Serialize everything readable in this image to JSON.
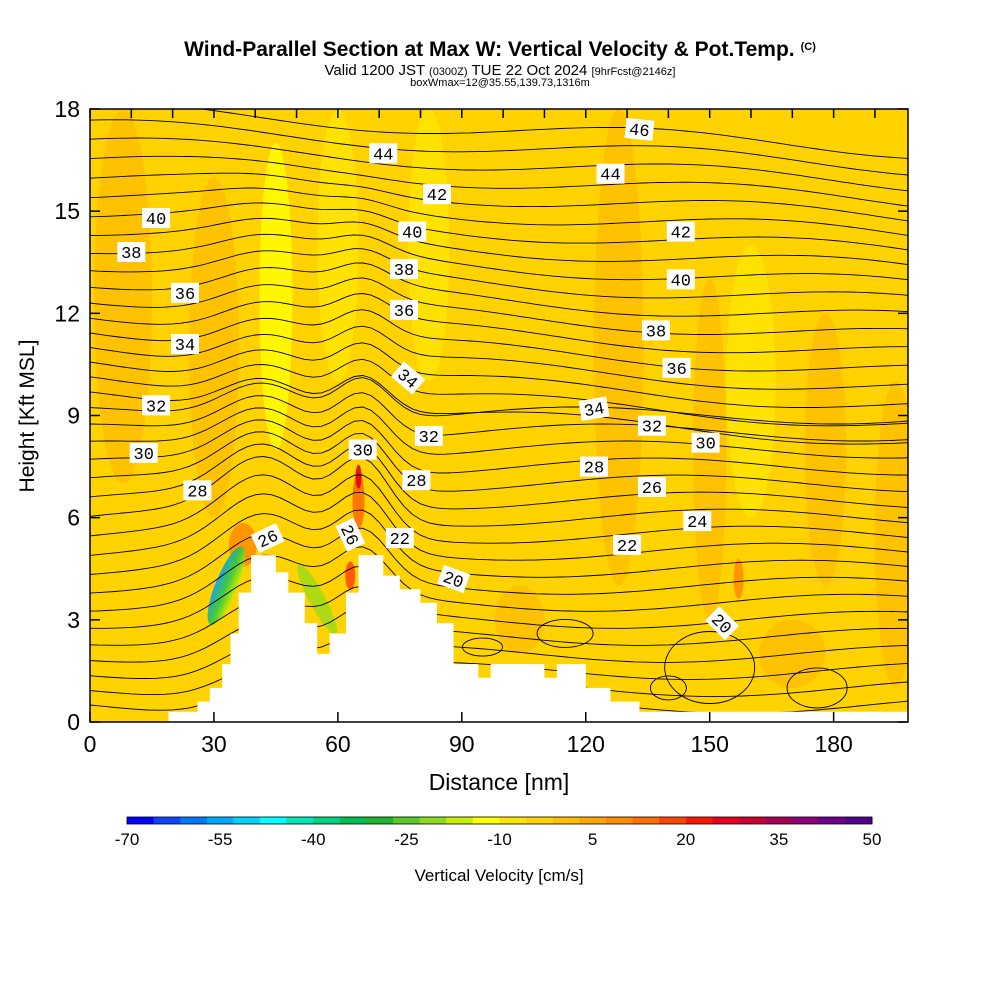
{
  "header": {
    "title": "Wind-Parallel Section at Max W: Vertical Velocity & Pot.Temp.",
    "copyright": "(C)",
    "valid_prefix": "Valid 1200 JST",
    "valid_utc": "(0300Z)",
    "valid_date": "TUE 22 Oct 2024",
    "forecast": "[9hrFcst@2146z]",
    "box_info": "boxWmax=12@35.55,139.73,1316m"
  },
  "chart_data": {
    "type": "contour",
    "xlabel": "Distance [nm]",
    "ylabel": "Height [Kft MSL]",
    "xlim": [
      0,
      198
    ],
    "ylim": [
      0,
      18
    ],
    "xticks": [
      0,
      30,
      60,
      90,
      120,
      150,
      180
    ],
    "yticks": [
      0,
      3,
      6,
      9,
      12,
      15,
      18
    ],
    "terrain_kft": [
      [
        0,
        0
      ],
      [
        19,
        0
      ],
      [
        19,
        0.3
      ],
      [
        26,
        0.3
      ],
      [
        26,
        0.6
      ],
      [
        29,
        0.6
      ],
      [
        29,
        1.0
      ],
      [
        32,
        1.0
      ],
      [
        32,
        1.7
      ],
      [
        34,
        1.7
      ],
      [
        34,
        2.6
      ],
      [
        36,
        2.6
      ],
      [
        36,
        3.8
      ],
      [
        39,
        3.8
      ],
      [
        39,
        4.9
      ],
      [
        45,
        4.9
      ],
      [
        45,
        4.4
      ],
      [
        48,
        4.4
      ],
      [
        48,
        3.8
      ],
      [
        52,
        3.8
      ],
      [
        52,
        2.9
      ],
      [
        55,
        2.9
      ],
      [
        55,
        2.0
      ],
      [
        58,
        2.0
      ],
      [
        58,
        2.6
      ],
      [
        62,
        2.6
      ],
      [
        62,
        3.8
      ],
      [
        65,
        3.8
      ],
      [
        65,
        4.9
      ],
      [
        71,
        4.9
      ],
      [
        71,
        4.3
      ],
      [
        75,
        4.3
      ],
      [
        75,
        3.9
      ],
      [
        80,
        3.9
      ],
      [
        80,
        3.5
      ],
      [
        84,
        3.5
      ],
      [
        84,
        2.9
      ],
      [
        88,
        2.9
      ],
      [
        88,
        1.7
      ],
      [
        94,
        1.7
      ],
      [
        94,
        1.3
      ],
      [
        97,
        1.3
      ],
      [
        97,
        1.7
      ],
      [
        110,
        1.7
      ],
      [
        110,
        1.3
      ],
      [
        113,
        1.3
      ],
      [
        113,
        1.7
      ],
      [
        120,
        1.7
      ],
      [
        120,
        1.0
      ],
      [
        126,
        1.0
      ],
      [
        126,
        0.6
      ],
      [
        133,
        0.6
      ],
      [
        133,
        0.3
      ],
      [
        198,
        0.3
      ],
      [
        198,
        0
      ]
    ],
    "contour_labels": [
      {
        "text": "46",
        "x": 133,
        "y": 17.4,
        "angle": 6
      },
      {
        "text": "44",
        "x": 71,
        "y": 16.7,
        "angle": 0
      },
      {
        "text": "44",
        "x": 126,
        "y": 16.1,
        "angle": 0
      },
      {
        "text": "42",
        "x": 84,
        "y": 15.5,
        "angle": 0
      },
      {
        "text": "42",
        "x": 143,
        "y": 14.4,
        "angle": 0
      },
      {
        "text": "40",
        "x": 16,
        "y": 14.8,
        "angle": 0
      },
      {
        "text": "40",
        "x": 78,
        "y": 14.4,
        "angle": 0
      },
      {
        "text": "40",
        "x": 143,
        "y": 13.0,
        "angle": 0
      },
      {
        "text": "38",
        "x": 10,
        "y": 13.8,
        "angle": 0
      },
      {
        "text": "38",
        "x": 76,
        "y": 13.3,
        "angle": 0
      },
      {
        "text": "38",
        "x": 137,
        "y": 11.5,
        "angle": 0
      },
      {
        "text": "36",
        "x": 23,
        "y": 12.6,
        "angle": 0
      },
      {
        "text": "36",
        "x": 76,
        "y": 12.1,
        "angle": 0
      },
      {
        "text": "36",
        "x": 142,
        "y": 10.4,
        "angle": 0
      },
      {
        "text": "34",
        "x": 23,
        "y": 11.1,
        "angle": 0
      },
      {
        "text": "34",
        "x": 77,
        "y": 10.1,
        "angle": 40
      },
      {
        "text": "34",
        "x": 122,
        "y": 9.2,
        "angle": -10
      },
      {
        "text": "32",
        "x": 16,
        "y": 9.3,
        "angle": 0
      },
      {
        "text": "32",
        "x": 82,
        "y": 8.4,
        "angle": 0
      },
      {
        "text": "32",
        "x": 136,
        "y": 8.7,
        "angle": 0
      },
      {
        "text": "30",
        "x": 13,
        "y": 7.9,
        "angle": 0
      },
      {
        "text": "30",
        "x": 66,
        "y": 8.0,
        "angle": 0
      },
      {
        "text": "30",
        "x": 149,
        "y": 8.2,
        "angle": 0
      },
      {
        "text": "28",
        "x": 26,
        "y": 6.8,
        "angle": 0
      },
      {
        "text": "28",
        "x": 79,
        "y": 7.1,
        "angle": 0
      },
      {
        "text": "28",
        "x": 122,
        "y": 7.5,
        "angle": 0
      },
      {
        "text": "26",
        "x": 136,
        "y": 6.9,
        "angle": 0
      },
      {
        "text": "26",
        "x": 43,
        "y": 5.4,
        "angle": -25
      },
      {
        "text": "26",
        "x": 63,
        "y": 5.5,
        "angle": 65
      },
      {
        "text": "24",
        "x": 147,
        "y": 5.9,
        "angle": 0
      },
      {
        "text": "22",
        "x": 75,
        "y": 5.4,
        "angle": 0
      },
      {
        "text": "22",
        "x": 130,
        "y": 5.2,
        "angle": 0
      },
      {
        "text": "20",
        "x": 88,
        "y": 4.2,
        "angle": 20
      },
      {
        "text": "20",
        "x": 153,
        "y": 2.9,
        "angle": 45
      }
    ],
    "colorbar": {
      "label": "Vertical Velocity [cm/s]",
      "tick_labels": [
        "-70",
        "-55",
        "-40",
        "-25",
        "-10",
        "5",
        "20",
        "35",
        "50"
      ],
      "colors": [
        "#0000ff",
        "#0a46ff",
        "#0078ff",
        "#00aaff",
        "#00d2ff",
        "#00ffff",
        "#00e6b4",
        "#00d282",
        "#00be50",
        "#22b42a",
        "#5ac828",
        "#8cdc1e",
        "#c8f000",
        "#ffff00",
        "#ffe600",
        "#ffd200",
        "#ffbe00",
        "#ffa500",
        "#ff8c00",
        "#ff6e00",
        "#ff4600",
        "#ff1400",
        "#e6001e",
        "#c80032",
        "#a00055",
        "#8c0078",
        "#6e008c",
        "#50008c"
      ]
    }
  }
}
